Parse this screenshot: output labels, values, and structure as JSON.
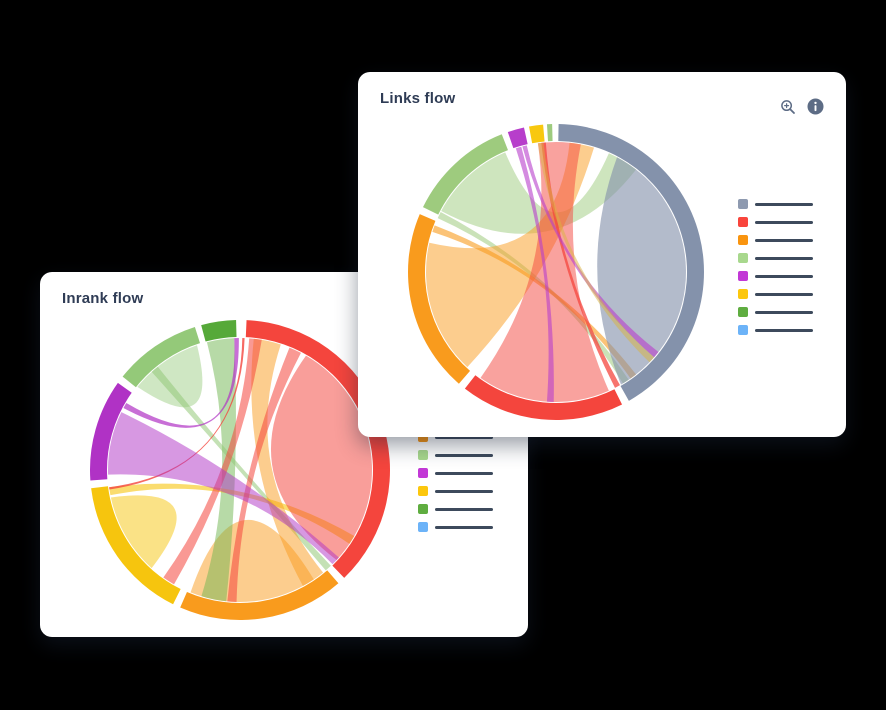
{
  "cards": {
    "links": {
      "title": "Links flow",
      "icons": [
        {
          "name": "zoom-in",
          "color": "#5d6c85"
        },
        {
          "name": "info",
          "color": "#5d6c85"
        }
      ],
      "legend": [
        {
          "name": "slate",
          "color": "#8e9ab0"
        },
        {
          "name": "red",
          "color": "#f9453c"
        },
        {
          "name": "orange",
          "color": "#f9940f"
        },
        {
          "name": "light-green",
          "color": "#a8d88d"
        },
        {
          "name": "purple",
          "color": "#c238d6"
        },
        {
          "name": "yellow",
          "color": "#fcc70d"
        },
        {
          "name": "green",
          "color": "#5fad40"
        },
        {
          "name": "blue",
          "color": "#6cb3f8"
        }
      ]
    },
    "inrank": {
      "title": "Inrank flow",
      "legend": [
        {
          "name": "slate",
          "color": "#8e9ab0"
        },
        {
          "name": "red",
          "color": "#f9453c"
        },
        {
          "name": "orange",
          "color": "#f9940f"
        },
        {
          "name": "light-green",
          "color": "#a8d88d"
        },
        {
          "name": "purple",
          "color": "#c238d6"
        },
        {
          "name": "yellow",
          "color": "#fcc70d"
        },
        {
          "name": "green",
          "color": "#5fad40"
        },
        {
          "name": "blue",
          "color": "#6cb3f8"
        }
      ]
    }
  },
  "chart_data": [
    {
      "type": "chord",
      "title": "Links flow",
      "center": [
        170,
        170
      ],
      "outer_radius": 148,
      "ring_width": 17,
      "segments": [
        {
          "name": "slate",
          "color": "#8492ab",
          "start_deg": 1,
          "end_deg": 150.5
        },
        {
          "name": "red",
          "color": "#f4453d",
          "start_deg": 153.5,
          "end_deg": 218
        },
        {
          "name": "orange",
          "color": "#f99b1d",
          "start_deg": 221,
          "end_deg": 293
        },
        {
          "name": "light-green",
          "color": "#9ecb7e",
          "start_deg": 296,
          "end_deg": 338.5
        },
        {
          "name": "purple",
          "color": "#b73ecb",
          "start_deg": 341,
          "end_deg": 347.5
        },
        {
          "name": "yellow",
          "color": "#f8c80f",
          "start_deg": 349.5,
          "end_deg": 355
        },
        {
          "name": "green-sliver",
          "color": "#9ecb7e",
          "start_deg": 356.5,
          "end_deg": 358.5
        }
      ],
      "ribbons": [
        {
          "color": "#9ecb7e",
          "from": [
            298,
            337
          ],
          "to": [
            24,
            38
          ],
          "opacity": 0.5
        },
        {
          "color": "#9ecb7e",
          "from": [
            294.5,
            297.5
          ],
          "to": [
            146,
            149
          ],
          "opacity": 0.55
        },
        {
          "color": "#f99b1d",
          "from": [
            223,
            283
          ],
          "to": [
            6,
            17
          ],
          "opacity": 0.5
        },
        {
          "color": "#f99b1d",
          "from": [
            288,
            291
          ],
          "to": [
            142,
            145
          ],
          "opacity": 0.6
        },
        {
          "color": "#8492ab",
          "from": [
            28,
            150
          ],
          "to": null,
          "bulge": -0.15,
          "opacity": 0.62
        },
        {
          "color": "#f4453d",
          "from": [
            156,
            215.5
          ],
          "to": [
            352,
            371
          ],
          "opacity": 0.5
        },
        {
          "color": "#f4453d",
          "from": [
            150.5,
            153
          ],
          "to": [
            353.5,
            355.5
          ],
          "opacity": 0.75
        },
        {
          "color": "#b73ecb",
          "from": [
            342,
            344.5
          ],
          "to": [
            181,
            184
          ],
          "opacity": 0.6
        },
        {
          "color": "#b73ecb",
          "from": [
            345,
            347
          ],
          "to": [
            128,
            131
          ],
          "opacity": 0.6
        },
        {
          "color": "#d9b33f",
          "from": [
            352,
            354.5
          ],
          "to": [
            131,
            134
          ],
          "opacity": 0.5
        }
      ]
    },
    {
      "type": "chord",
      "title": "Inrank flow",
      "center": [
        170,
        170
      ],
      "outer_radius": 150,
      "ring_width": 17,
      "segments": [
        {
          "name": "red",
          "color": "#f4453d",
          "start_deg": 2.5,
          "end_deg": 136
        },
        {
          "name": "orange",
          "color": "#f99b1d",
          "start_deg": 139,
          "end_deg": 203.5
        },
        {
          "name": "yellow",
          "color": "#f6c50e",
          "start_deg": 206.5,
          "end_deg": 263
        },
        {
          "name": "purple",
          "color": "#b032c5",
          "start_deg": 266,
          "end_deg": 305.5
        },
        {
          "name": "light-green",
          "color": "#94c979",
          "start_deg": 308.5,
          "end_deg": 342.5
        },
        {
          "name": "green",
          "color": "#56a939",
          "start_deg": 345,
          "end_deg": 358.5
        }
      ],
      "ribbons": [
        {
          "color": "#94c979",
          "from": [
            309,
            341
          ],
          "to": null,
          "bulge": -0.25,
          "opacity": 0.45
        },
        {
          "color": "#f99b1d",
          "from": [
            146,
            202
          ],
          "to": null,
          "bulge": 0.12,
          "opacity": 0.5
        },
        {
          "color": "#f6c50e",
          "from": [
            222,
            258
          ],
          "to": null,
          "bulge": -0.2,
          "opacity": 0.5
        },
        {
          "color": "#6fb54f",
          "from": [
            345.5,
            357.5
          ],
          "to": [
            186,
            197
          ],
          "opacity": 0.5
        },
        {
          "color": "#94c979",
          "from": [
            318,
            321.5
          ],
          "to": [
            136.5,
            139.5
          ],
          "opacity": 0.55
        },
        {
          "color": "#f6c50e",
          "from": [
            259,
            262.5
          ],
          "to": [
            120,
            124
          ],
          "opacity": 0.6
        },
        {
          "color": "#f4453d",
          "from": [
            30,
            133
          ],
          "to": null,
          "bulge": 0.13,
          "opacity": 0.52
        },
        {
          "color": "#f99b1d",
          "from": [
            6,
            18
          ],
          "to": [
            141,
            151.5
          ],
          "opacity": 0.5
        },
        {
          "color": "#f4453d",
          "from": [
            4,
            9.5
          ],
          "to": [
            210,
            215.5
          ],
          "opacity": 0.55
        },
        {
          "color": "#f4453d",
          "from": [
            22,
            27.5
          ],
          "to": [
            181.5,
            185.5
          ],
          "opacity": 0.55
        },
        {
          "color": "#f4453d",
          "from": [
            1,
            2
          ],
          "to": [
            261.5,
            262.5
          ],
          "opacity": 0.8
        },
        {
          "color": "#b032c5",
          "from": [
            268,
            296
          ],
          "to": [
            131.5,
            135.5
          ],
          "opacity": 0.5
        },
        {
          "color": "#b032c5",
          "from": [
            357.5,
            359.5
          ],
          "to": [
            298,
            300.5
          ],
          "opacity": 0.7
        }
      ]
    }
  ]
}
